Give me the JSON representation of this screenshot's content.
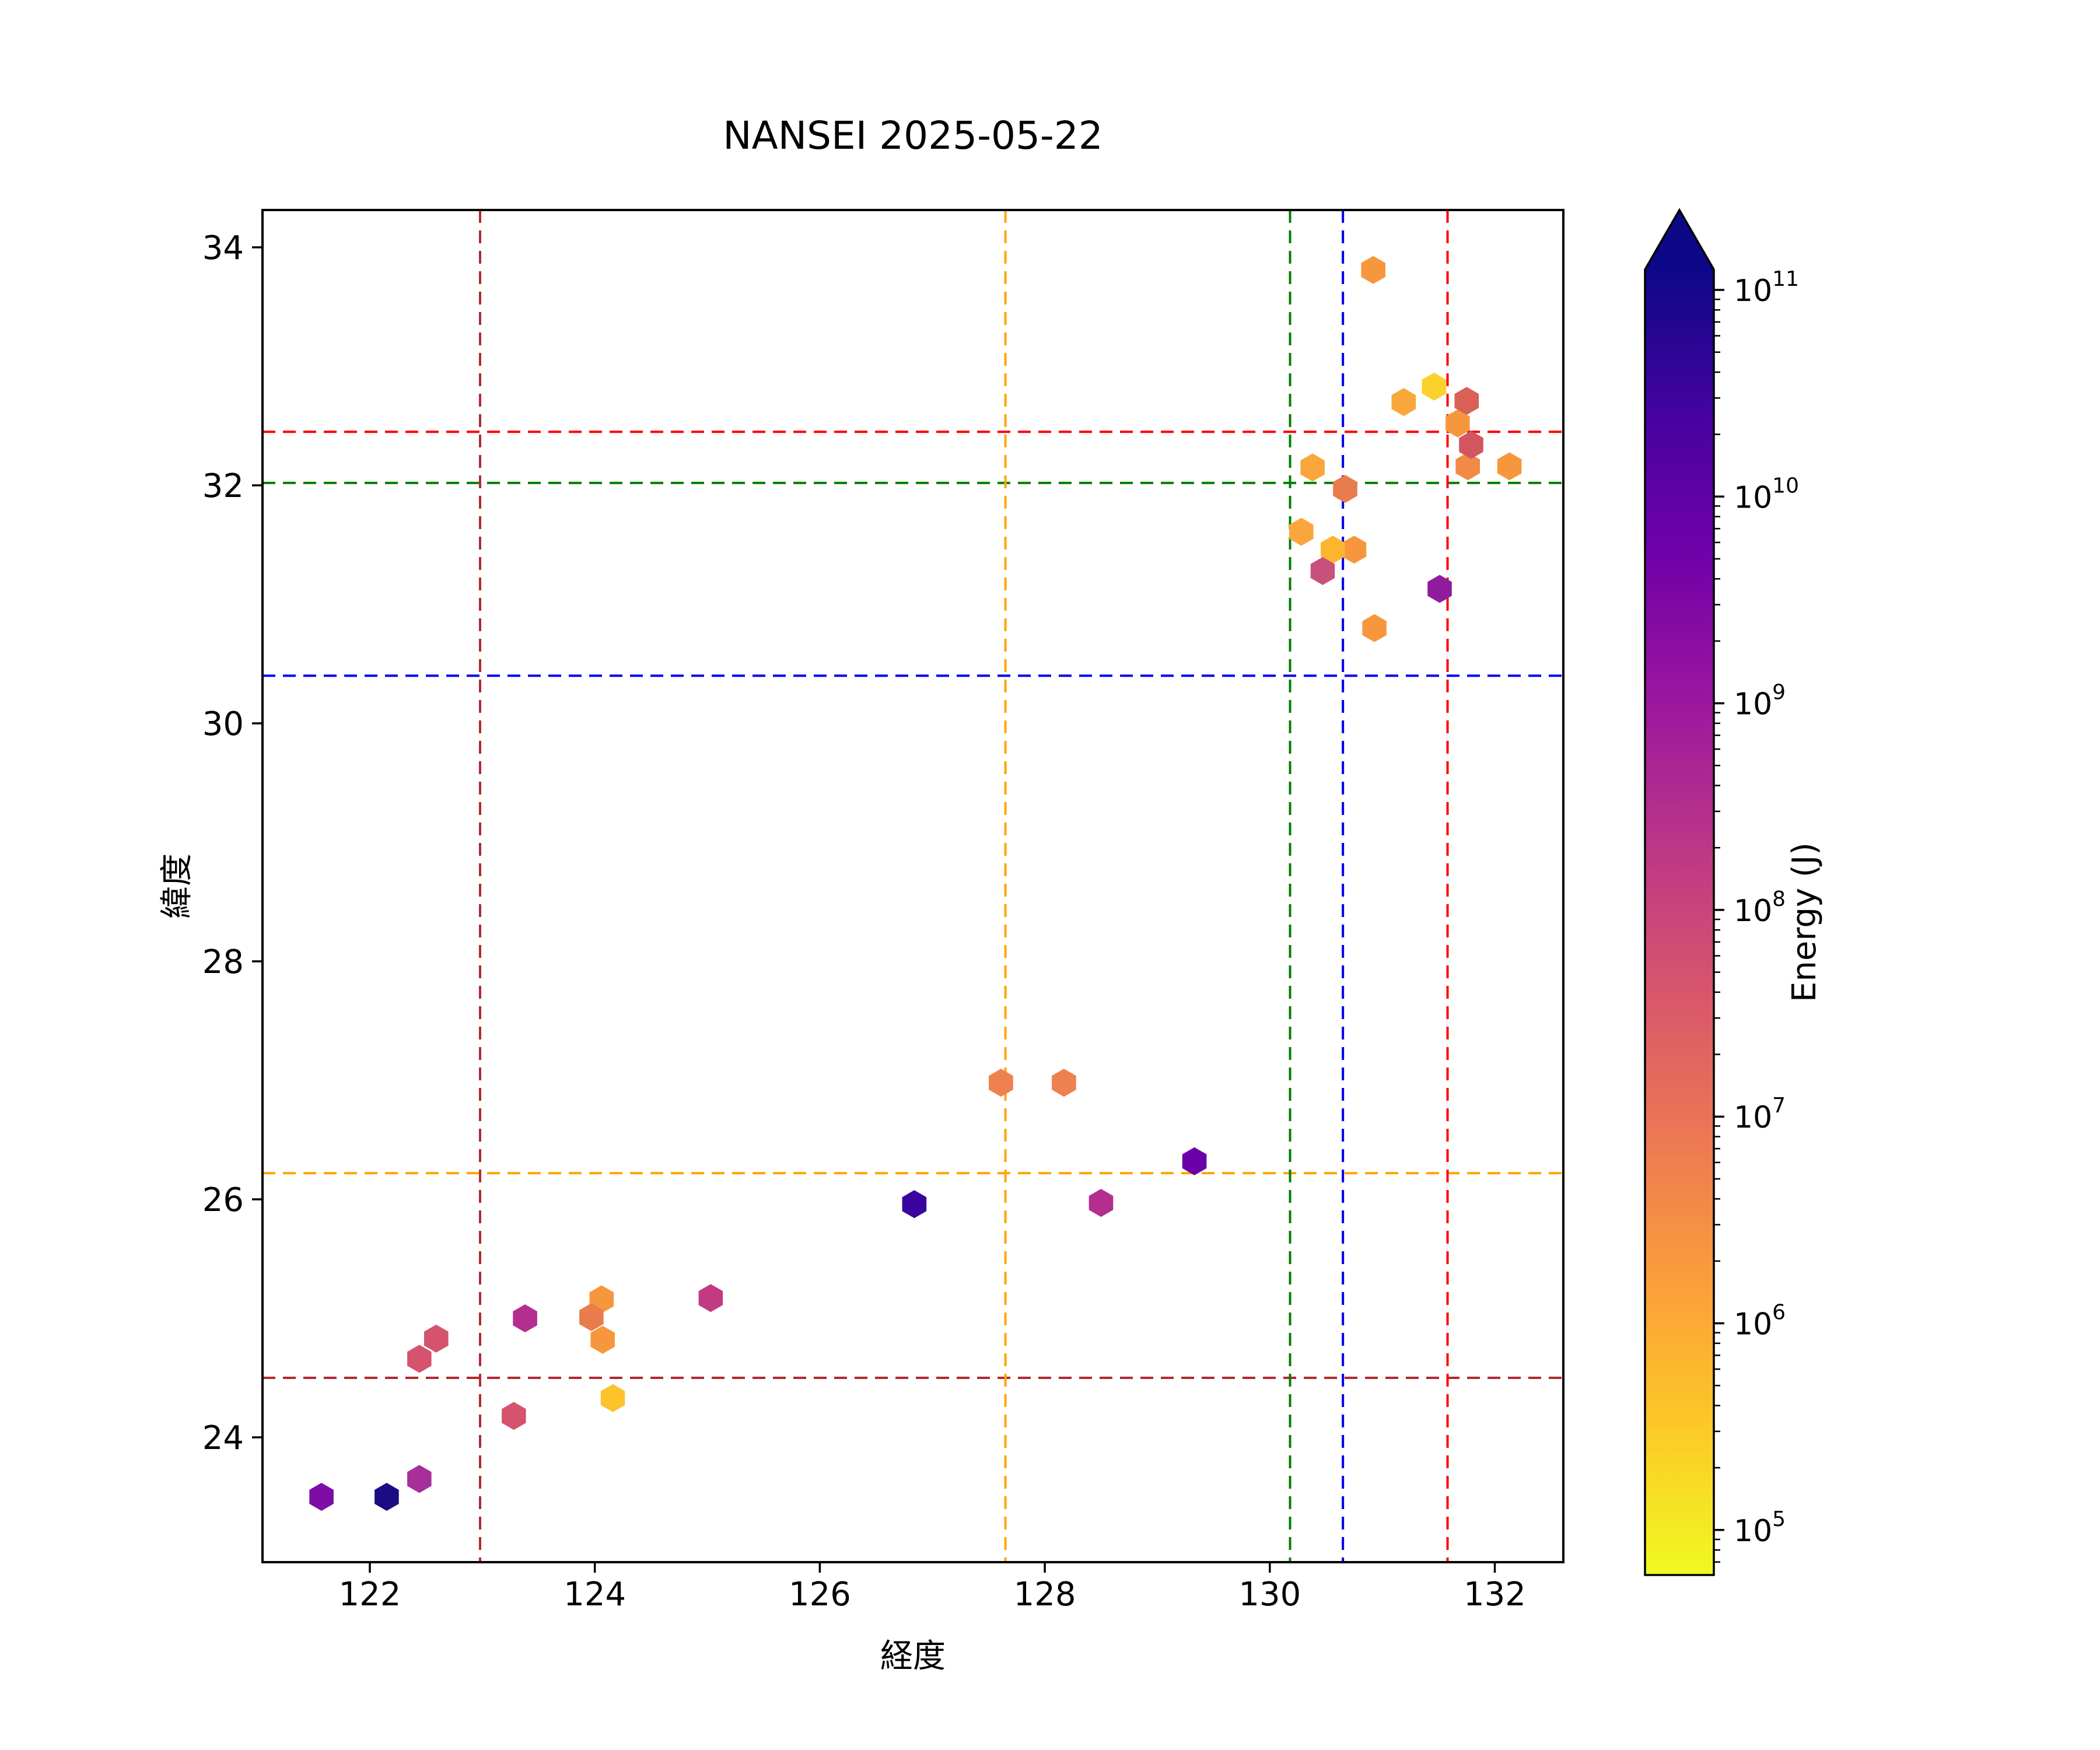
{
  "chart_data": {
    "type": "scatter",
    "title": "NANSEI 2025-05-22",
    "xlabel": "経度",
    "ylabel": "緯度",
    "xlim": [
      121.05,
      132.61
    ],
    "ylim": [
      22.95,
      34.31
    ],
    "xticks": [
      122,
      124,
      126,
      128,
      130,
      132
    ],
    "yticks": [
      24,
      26,
      28,
      30,
      32,
      34
    ],
    "grid": false,
    "marker": "hexagon",
    "points": [
      {
        "lon": 121.57,
        "lat": 23.5,
        "energy_j": 3000000000.0,
        "color": "#7d0da6"
      },
      {
        "lon": 122.15,
        "lat": 23.5,
        "energy_j": 60000000000.0,
        "color": "#1b0c84"
      },
      {
        "lon": 122.44,
        "lat": 23.65,
        "energy_j": 700000000.0,
        "color": "#a62f9a"
      },
      {
        "lon": 123.28,
        "lat": 24.18,
        "energy_j": 60000000.0,
        "color": "#d5536d"
      },
      {
        "lon": 122.44,
        "lat": 24.66,
        "energy_j": 60000000.0,
        "color": "#d5536d"
      },
      {
        "lon": 122.59,
        "lat": 24.83,
        "energy_j": 60000000.0,
        "color": "#d5536d"
      },
      {
        "lon": 123.38,
        "lat": 25.0,
        "energy_j": 300000000.0,
        "color": "#b32e8e"
      },
      {
        "lon": 124.06,
        "lat": 25.16,
        "energy_j": 2500000.0,
        "color": "#f6973d"
      },
      {
        "lon": 124.07,
        "lat": 24.82,
        "energy_j": 2500000.0,
        "color": "#f6973d"
      },
      {
        "lon": 123.97,
        "lat": 25.01,
        "energy_j": 10000000.0,
        "color": "#e87c4c"
      },
      {
        "lon": 124.16,
        "lat": 24.33,
        "energy_j": 500000.0,
        "color": "#fcc32c"
      },
      {
        "lon": 125.03,
        "lat": 25.17,
        "energy_j": 160000000.0,
        "color": "#c23a82"
      },
      {
        "lon": 126.84,
        "lat": 25.96,
        "energy_j": 30000000000.0,
        "color": "#3a049f"
      },
      {
        "lon": 127.61,
        "lat": 26.98,
        "energy_j": 8000000.0,
        "color": "#ef8050"
      },
      {
        "lon": 128.17,
        "lat": 26.98,
        "energy_j": 8000000.0,
        "color": "#ef8050"
      },
      {
        "lon": 128.5,
        "lat": 25.97,
        "energy_j": 300000000.0,
        "color": "#b32e8e"
      },
      {
        "lon": 129.33,
        "lat": 26.32,
        "energy_j": 6000000000.0,
        "color": "#6a00a8"
      },
      {
        "lon": 130.92,
        "lat": 33.81,
        "energy_j": 2500000.0,
        "color": "#f6973d"
      },
      {
        "lon": 131.46,
        "lat": 32.83,
        "energy_j": 300000.0,
        "color": "#fcd12b"
      },
      {
        "lon": 131.19,
        "lat": 32.7,
        "energy_j": 1500000.0,
        "color": "#f9a73c"
      },
      {
        "lon": 131.67,
        "lat": 32.52,
        "energy_j": 2500000.0,
        "color": "#f6973d"
      },
      {
        "lon": 131.75,
        "lat": 32.71,
        "energy_j": 25000000.0,
        "color": "#d96057"
      },
      {
        "lon": 130.38,
        "lat": 32.15,
        "energy_j": 1500000.0,
        "color": "#f9a73c"
      },
      {
        "lon": 130.67,
        "lat": 31.97,
        "energy_j": 10000000.0,
        "color": "#e87c4c"
      },
      {
        "lon": 130.28,
        "lat": 31.61,
        "energy_j": 1500000.0,
        "color": "#f9a73c"
      },
      {
        "lon": 130.75,
        "lat": 31.46,
        "energy_j": 2500000.0,
        "color": "#f6973d"
      },
      {
        "lon": 130.56,
        "lat": 31.46,
        "energy_j": 800000.0,
        "color": "#fbb52e"
      },
      {
        "lon": 130.47,
        "lat": 31.28,
        "energy_j": 100000000.0,
        "color": "#c8517c"
      },
      {
        "lon": 131.76,
        "lat": 32.16,
        "energy_j": 5000000.0,
        "color": "#f08a44"
      },
      {
        "lon": 131.79,
        "lat": 32.34,
        "energy_j": 35000000.0,
        "color": "#d25560"
      },
      {
        "lon": 132.13,
        "lat": 32.16,
        "energy_j": 2500000.0,
        "color": "#f6973d"
      },
      {
        "lon": 131.51,
        "lat": 31.13,
        "energy_j": 1200000000.0,
        "color": "#8f1d9b"
      },
      {
        "lon": 130.93,
        "lat": 30.8,
        "energy_j": 2500000.0,
        "color": "#f6973d"
      }
    ],
    "hlines": [
      {
        "lat": 32.45,
        "color": "#ff0000"
      },
      {
        "lat": 32.02,
        "color": "#008000"
      },
      {
        "lat": 30.4,
        "color": "#0000ee"
      },
      {
        "lat": 26.22,
        "color": "#ffa500"
      },
      {
        "lat": 24.5,
        "color": "#b02a30"
      }
    ],
    "vlines": [
      {
        "lon": 122.98,
        "color": "#b02a30"
      },
      {
        "lon": 127.65,
        "color": "#ffa500"
      },
      {
        "lon": 130.18,
        "color": "#008000"
      },
      {
        "lon": 130.65,
        "color": "#0000ee"
      },
      {
        "lon": 131.58,
        "color": "#ff0000"
      }
    ],
    "colorbar": {
      "label": "Energy (J)",
      "scale": "log",
      "tick_mantissa": "10",
      "tick_exponents": [
        11,
        10,
        9,
        8,
        7,
        6,
        5
      ],
      "extend": "max",
      "gradient_top_to_bottom": [
        "#0d0887",
        "#46039f",
        "#7201a8",
        "#9c179e",
        "#bd3786",
        "#d8576b",
        "#ed7953",
        "#fb9f3a",
        "#fdca26",
        "#f0f921"
      ]
    }
  }
}
